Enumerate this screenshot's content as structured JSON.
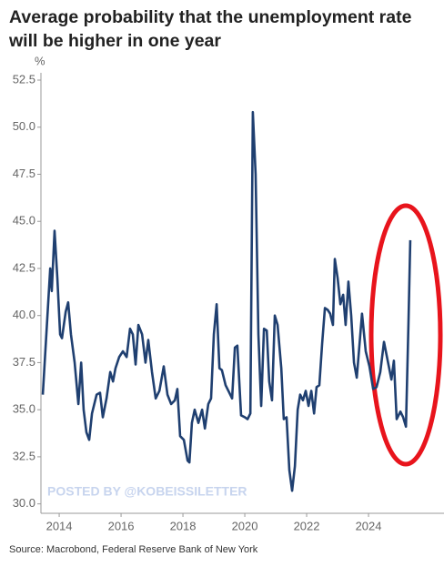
{
  "chart_data": {
    "type": "line",
    "title": "Average probability that the unemployment rate will be higher in one year",
    "y_unit": "%",
    "watermark": "POSTED BY @KOBEISSILETTER",
    "source": "Source: Macrobond, Federal Reserve Bank of New York",
    "xlim": [
      2013.41,
      2026.44
    ],
    "xticks": [
      2014,
      2016,
      2018,
      2020,
      2022,
      2024
    ],
    "ylim": [
      29.5,
      52.5
    ],
    "yticks": [
      {
        "value": 30,
        "label": "30.0"
      },
      32.5,
      {
        "value": 35,
        "label": "35.0"
      },
      37.5,
      {
        "value": 40,
        "label": "40.0"
      },
      42.5,
      {
        "value": 45,
        "label": "45.0"
      },
      47.5,
      {
        "value": 50,
        "label": "50.0"
      },
      52.5
    ],
    "grid": false,
    "x": [
      2013.47,
      2013.71,
      2013.76,
      2013.85,
      2013.94,
      2014.03,
      2014.09,
      2014.21,
      2014.29,
      2014.38,
      2014.5,
      2014.62,
      2014.71,
      2014.79,
      2014.88,
      2014.97,
      2015.06,
      2015.21,
      2015.32,
      2015.41,
      2015.53,
      2015.65,
      2015.74,
      2015.82,
      2015.94,
      2016.06,
      2016.18,
      2016.29,
      2016.38,
      2016.47,
      2016.56,
      2016.68,
      2016.79,
      2016.88,
      2017.0,
      2017.12,
      2017.24,
      2017.38,
      2017.5,
      2017.62,
      2017.74,
      2017.82,
      2017.91,
      2018.03,
      2018.15,
      2018.21,
      2018.29,
      2018.38,
      2018.5,
      2018.62,
      2018.71,
      2018.82,
      2018.91,
      2019.0,
      2019.09,
      2019.18,
      2019.26,
      2019.38,
      2019.47,
      2019.59,
      2019.68,
      2019.76,
      2019.88,
      2020.0,
      2020.09,
      2020.18,
      2020.26,
      2020.35,
      2020.44,
      2020.53,
      2020.62,
      2020.71,
      2020.79,
      2020.88,
      2020.97,
      2021.06,
      2021.18,
      2021.26,
      2021.35,
      2021.44,
      2021.53,
      2021.62,
      2021.71,
      2021.79,
      2021.88,
      2021.97,
      2022.06,
      2022.15,
      2022.24,
      2022.32,
      2022.41,
      2022.5,
      2022.59,
      2022.68,
      2022.76,
      2022.85,
      2022.91,
      2023.0,
      2023.09,
      2023.18,
      2023.26,
      2023.35,
      2023.44,
      2023.53,
      2023.62,
      2023.71,
      2023.79,
      2023.91,
      2024.03,
      2024.15,
      2024.26,
      2024.38,
      2024.5,
      2024.62,
      2024.74,
      2024.82,
      2024.91,
      2025.03,
      2025.12,
      2025.21,
      2025.29,
      2025.35
    ],
    "series": [
      {
        "color": "#1f3f70",
        "values": [
          35.8,
          42.5,
          41.3,
          44.5,
          42,
          39,
          38.8,
          40.2,
          40.7,
          39,
          37.5,
          35.3,
          37.5,
          35,
          33.8,
          33.4,
          34.8,
          35.8,
          35.9,
          34.6,
          35.6,
          37,
          36.5,
          37.2,
          37.8,
          38.1,
          37.8,
          39.3,
          39,
          37.4,
          39.5,
          39,
          37.5,
          38.7,
          37,
          35.6,
          36,
          37.3,
          35.8,
          35.3,
          35.5,
          36.1,
          33.6,
          33.4,
          32.3,
          32.2,
          34.3,
          35,
          34.3,
          35,
          34,
          35.3,
          35.6,
          39,
          40.6,
          37.2,
          37.1,
          36.3,
          36,
          35.6,
          38.3,
          38.4,
          34.7,
          34.6,
          34.5,
          34.8,
          50.8,
          47.5,
          39,
          35.2,
          39.3,
          39.2,
          36.5,
          35.5,
          40,
          39.5,
          37.2,
          34.5,
          34.6,
          31.8,
          30.7,
          32,
          35,
          35.8,
          35.5,
          36,
          35.2,
          36,
          34.8,
          36.2,
          36.3,
          38.5,
          40.4,
          40.3,
          40.1,
          39.5,
          43,
          42,
          40.6,
          41.1,
          39.5,
          41.8,
          40,
          37.5,
          36.7,
          38.5,
          40.1,
          38.1,
          37.3,
          36.1,
          36.2,
          37,
          38.6,
          37.6,
          36.6,
          37.6,
          34.5,
          34.9,
          34.6,
          34.1,
          39.5,
          44
        ]
      }
    ]
  }
}
